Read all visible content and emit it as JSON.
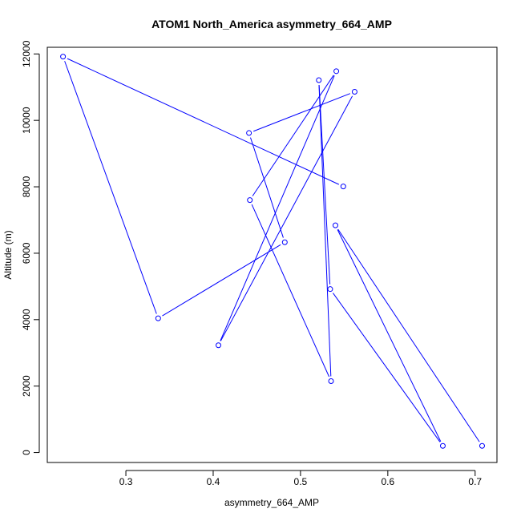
{
  "chart_data": {
    "type": "line",
    "title": "ATOM1 North_America asymmetry_664_AMP",
    "xlabel": "asymmetry_664_AMP",
    "ylabel": "Altitude (m)",
    "xlim": [
      0.21,
      0.725
    ],
    "ylim": [
      -300,
      12200
    ],
    "x_ticks": [
      0.3,
      0.4,
      0.5,
      0.6,
      0.7
    ],
    "y_ticks": [
      0,
      2000,
      4000,
      6000,
      8000,
      10000,
      12000
    ],
    "grid": false,
    "legend": "none",
    "series_color": "#0000ff",
    "markers": "open-circle",
    "points": [
      {
        "x": 0.708,
        "y": 200
      },
      {
        "x": 0.54,
        "y": 6840
      },
      {
        "x": 0.663,
        "y": 200
      },
      {
        "x": 0.534,
        "y": 4920
      },
      {
        "x": 0.521,
        "y": 11210
      },
      {
        "x": 0.535,
        "y": 2150
      },
      {
        "x": 0.442,
        "y": 7600
      },
      {
        "x": 0.541,
        "y": 11480
      },
      {
        "x": 0.406,
        "y": 3230
      },
      {
        "x": 0.562,
        "y": 10860
      },
      {
        "x": 0.441,
        "y": 9620
      },
      {
        "x": 0.482,
        "y": 6330
      },
      {
        "x": 0.337,
        "y": 4040
      },
      {
        "x": 0.228,
        "y": 11920
      },
      {
        "x": 0.549,
        "y": 8010
      }
    ]
  }
}
